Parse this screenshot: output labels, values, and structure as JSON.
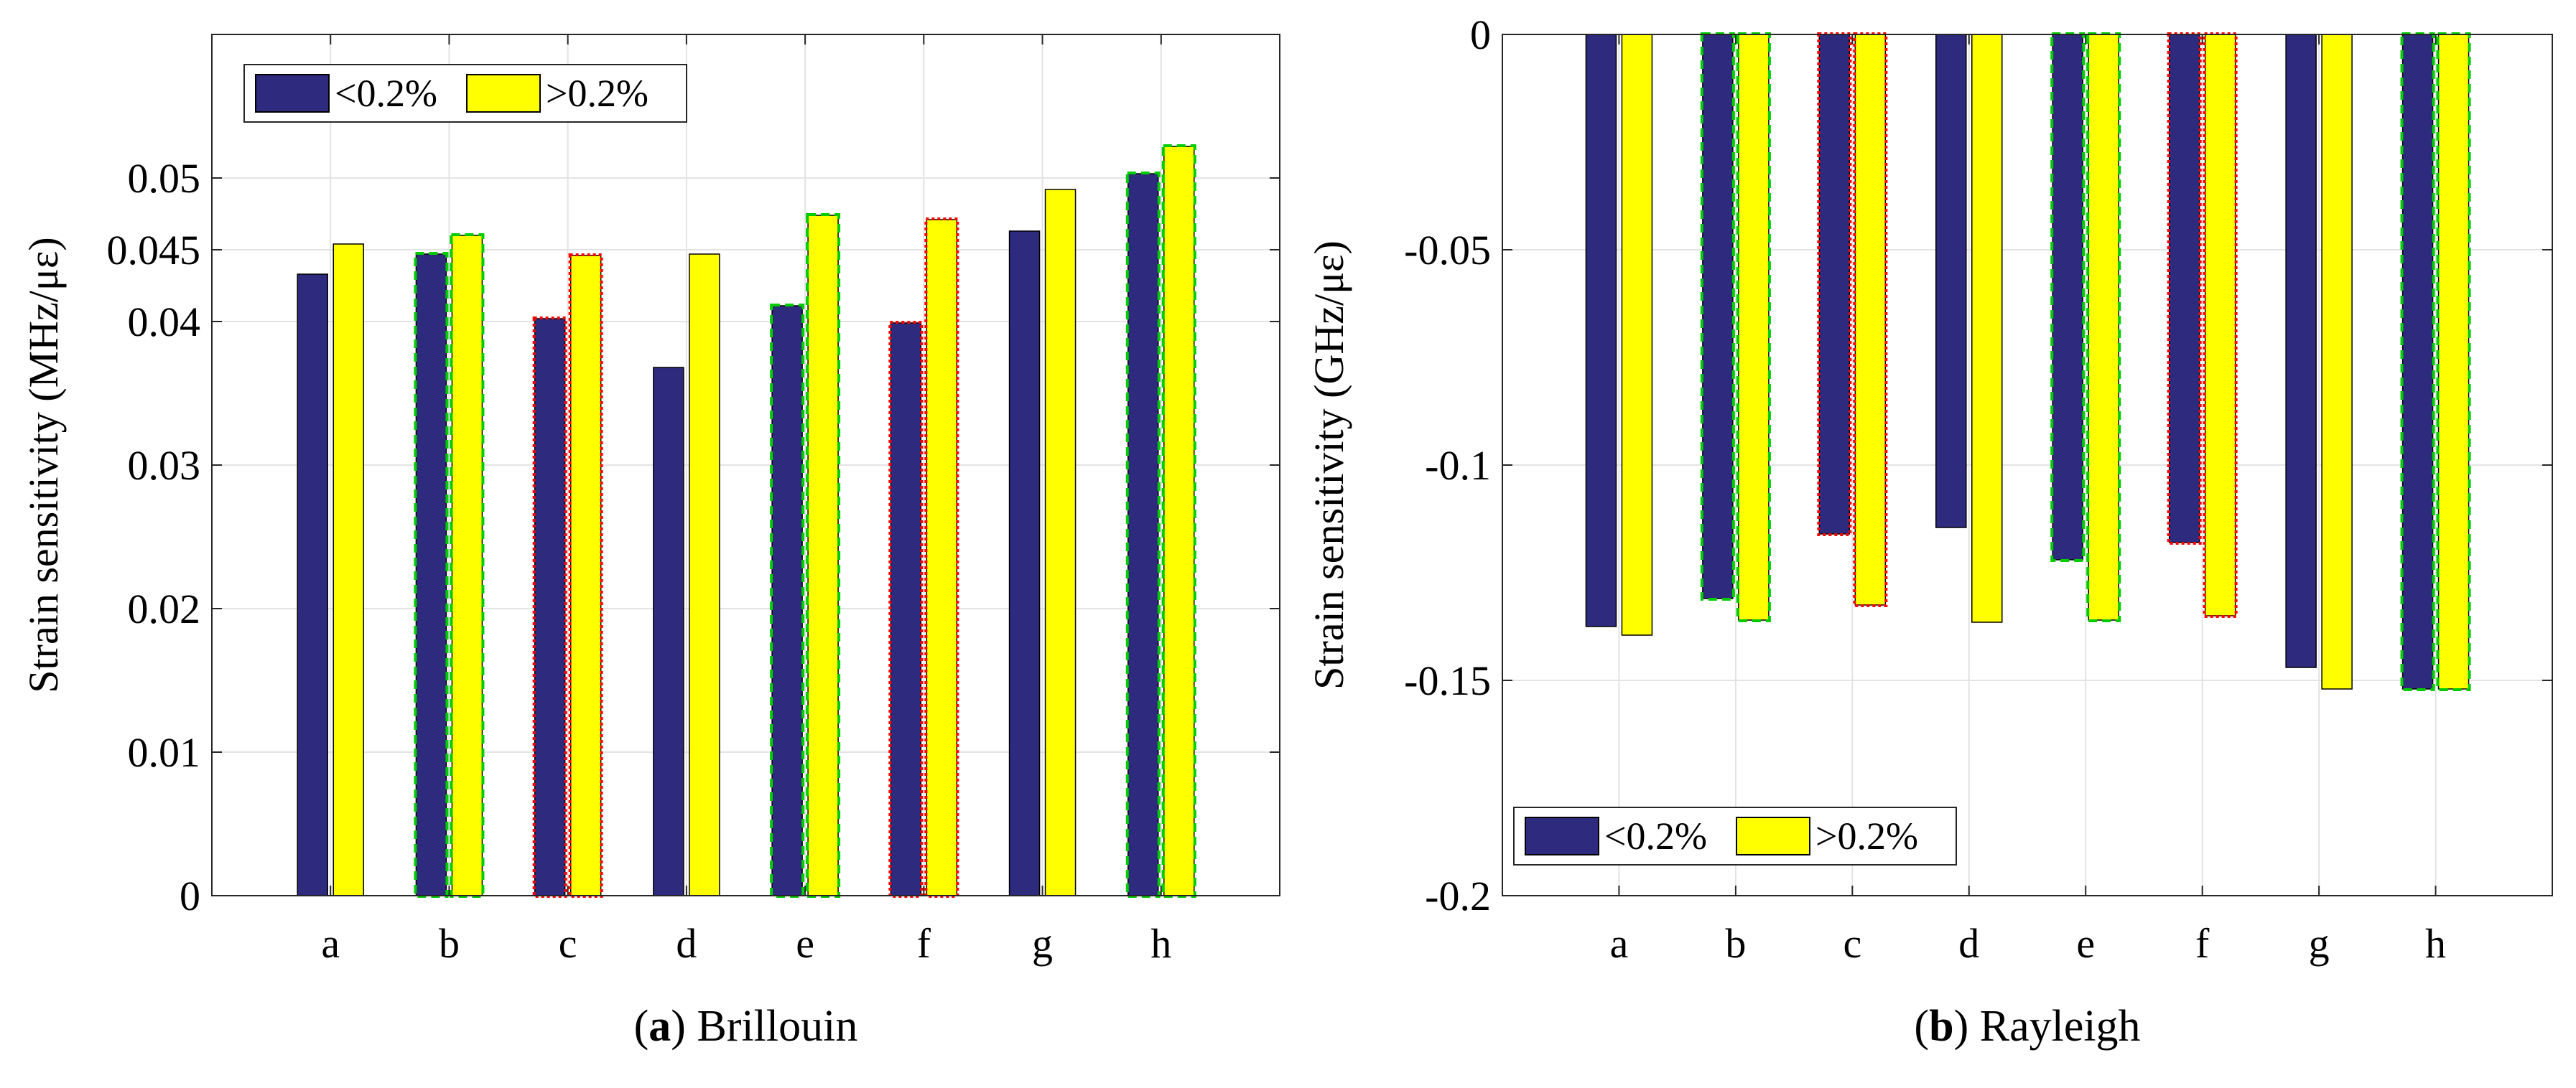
{
  "chart_data": [
    {
      "type": "bar",
      "panel_letter": "a",
      "panel_title": "Brillouin",
      "ylabel": "Strain sensitivity (MHz/με)",
      "xlabel": "",
      "categories": [
        "a",
        "b",
        "c",
        "d",
        "e",
        "f",
        "g",
        "h"
      ],
      "series": [
        {
          "name": "<0.2%",
          "color": "#2e2a7d",
          "values": [
            0.0433,
            0.0447,
            0.0402,
            0.0368,
            0.0411,
            0.0399,
            0.0463,
            0.0503
          ]
        },
        {
          "name": ">0.2%",
          "color": "#ffff00",
          "values": [
            0.0454,
            0.046,
            0.0446,
            0.0447,
            0.0474,
            0.0471,
            0.0492,
            0.0522
          ]
        }
      ],
      "ylim": [
        0,
        0.06
      ],
      "yticks": [
        0,
        0.01,
        0.02,
        0.03,
        0.04,
        0.045,
        0.05
      ],
      "ytick_labels": [
        "0",
        "0.01",
        "0.02",
        "0.03",
        "0.04",
        "0.045",
        "0.05"
      ],
      "grid": true,
      "legend_position": "top-left",
      "highlight_outlines": {
        "b": "#00cc00",
        "e": "#00cc00",
        "h": "#00cc00",
        "c": "#ff0000",
        "f": "#ff0000"
      }
    },
    {
      "type": "bar",
      "panel_letter": "b",
      "panel_title": "Rayleigh",
      "ylabel": "Strain sensitivity (GHz/με)",
      "xlabel": "",
      "categories": [
        "a",
        "b",
        "c",
        "d",
        "e",
        "f",
        "g",
        "h"
      ],
      "series": [
        {
          "name": "<0.2%",
          "color": "#2e2a7d",
          "values": [
            -0.1375,
            -0.131,
            -0.116,
            -0.1145,
            -0.122,
            -0.118,
            -0.147,
            -0.152
          ]
        },
        {
          "name": ">0.2%",
          "color": "#ffff00",
          "values": [
            -0.1395,
            -0.136,
            -0.1325,
            -0.1365,
            -0.136,
            -0.135,
            -0.152,
            -0.152
          ]
        }
      ],
      "ylim": [
        -0.2,
        0
      ],
      "yticks": [
        -0.2,
        -0.15,
        -0.1,
        -0.05,
        0
      ],
      "ytick_labels": [
        "-0.2",
        "-0.15",
        "-0.1",
        "-0.05",
        "0"
      ],
      "grid": true,
      "legend_position": "bottom-left",
      "highlight_outlines": {
        "b": "#00cc00",
        "e": "#00cc00",
        "h": "#00cc00",
        "c": "#ff0000",
        "f": "#ff0000"
      }
    }
  ]
}
